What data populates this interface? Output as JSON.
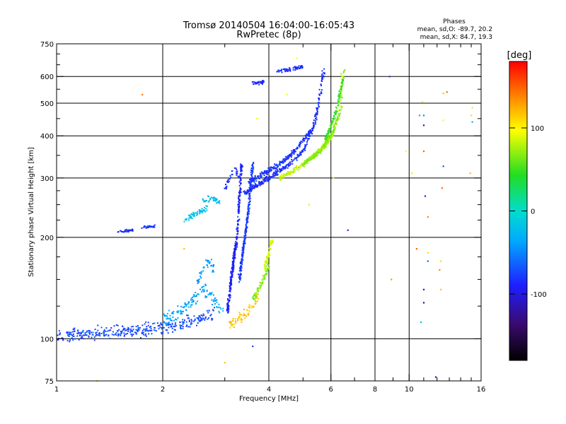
{
  "chart_data": {
    "type": "scatter",
    "title": "Tromsø 20140504 16:04:00-16:05:43",
    "subtitle": "RwPretec (8p)",
    "annotation": {
      "heading": "Phases",
      "line_o": "mean, sd,O: -89.7, 20.2",
      "line_x": "mean, sd,X:  84.7, 19.3"
    },
    "xlabel": "Frequency [MHz]",
    "ylabel": "Stationary phase Virtual Height [km]",
    "x_scale": "log",
    "y_scale": "log",
    "xlim": [
      1,
      16
    ],
    "ylim": [
      75,
      750
    ],
    "x_ticks": [
      1,
      2,
      4,
      6,
      8,
      10,
      16
    ],
    "x_tick_labels": [
      "1",
      "2",
      "4",
      "6",
      "8",
      "10",
      "16"
    ],
    "x_minor_ticks": [
      3,
      5,
      7,
      9,
      11,
      12,
      13,
      14,
      15
    ],
    "y_ticks": [
      75,
      100,
      200,
      300,
      400,
      500,
      600,
      750
    ],
    "y_tick_labels": [
      "75",
      "100",
      "200",
      "300",
      "400",
      "500",
      "600",
      "750"
    ],
    "y_minor_ticks": [
      125,
      150,
      175,
      225,
      250,
      275,
      350,
      450,
      550,
      650,
      700
    ],
    "grid_x": [
      2,
      4,
      6,
      8,
      10
    ],
    "grid_y": [
      100,
      200,
      300,
      400,
      500,
      600
    ],
    "colorbar": {
      "label": "[deg]",
      "range": [
        -180,
        180
      ],
      "ticks": [
        100,
        0,
        -100
      ],
      "tick_labels": [
        "100",
        "0",
        "-100"
      ]
    },
    "traces": [
      {
        "f": [
          1.0,
          1.3,
          1.6,
          1.9,
          2.2,
          2.5,
          2.8
        ],
        "h": [
          102,
          104,
          105,
          107,
          110,
          114,
          118
        ],
        "phase": -85,
        "spread": 0.06
      },
      {
        "f": [
          2.0,
          2.2,
          2.4,
          2.6,
          2.8,
          2.95
        ],
        "h": [
          112,
          118,
          128,
          140,
          130,
          120
        ],
        "phase": -50,
        "spread": 0.07
      },
      {
        "f": [
          2.5,
          2.6,
          2.7,
          2.8
        ],
        "h": [
          145,
          162,
          170,
          160
        ],
        "phase": -55,
        "spread": 0.05
      },
      {
        "f": [
          2.6,
          2.75,
          2.9
        ],
        "h": [
          255,
          262,
          255
        ],
        "phase": -30,
        "spread": 0.03
      },
      {
        "f": [
          2.3,
          2.5,
          2.7
        ],
        "h": [
          225,
          235,
          245
        ],
        "phase": -30,
        "spread": 0.03
      },
      {
        "f": [
          3.1,
          3.3,
          3.5,
          3.75
        ],
        "h": [
          110,
          115,
          120,
          135
        ],
        "phase": 120,
        "spread": 0.05
      },
      {
        "f": [
          3.6,
          3.8,
          4.0
        ],
        "h": [
          130,
          145,
          165
        ],
        "phase": 70,
        "spread": 0.04
      },
      {
        "f": [
          3.9,
          4.0,
          4.1
        ],
        "h": [
          165,
          180,
          200
        ],
        "phase": 90,
        "spread": 0.04
      },
      {
        "f": [
          3.05,
          3.15,
          3.25,
          3.3,
          3.35
        ],
        "h": [
          120,
          160,
          200,
          260,
          330
        ],
        "phase": -100,
        "spread": 0.03
      },
      {
        "f": [
          3.3,
          3.4,
          3.5,
          3.6
        ],
        "h": [
          150,
          190,
          240,
          330
        ],
        "phase": -90,
        "spread": 0.03
      },
      {
        "f": [
          3.0,
          3.1,
          3.2,
          3.3
        ],
        "h": [
          280,
          300,
          320,
          300
        ],
        "phase": -95,
        "spread": 0.03
      },
      {
        "f": [
          3.4,
          3.7,
          4.0,
          4.5,
          5.0,
          5.4,
          5.7
        ],
        "h": [
          270,
          285,
          300,
          325,
          360,
          430,
          620
        ],
        "phase": -95,
        "spread": 0.025
      },
      {
        "f": [
          3.5,
          3.9,
          4.3,
          4.8,
          5.3,
          5.6,
          5.75
        ],
        "h": [
          290,
          310,
          330,
          365,
          420,
          520,
          650
        ],
        "phase": -92,
        "spread": 0.025
      },
      {
        "f": [
          4.3,
          4.8,
          5.4,
          6.0,
          6.3,
          6.45
        ],
        "h": [
          300,
          320,
          350,
          395,
          460,
          620
        ],
        "phase": 85,
        "spread": 0.025
      },
      {
        "f": [
          5.0,
          5.6,
          6.1,
          6.4,
          6.55
        ],
        "h": [
          330,
          360,
          410,
          480,
          640
        ],
        "phase": 70,
        "spread": 0.025
      },
      {
        "f": [
          5.8,
          6.2,
          6.5
        ],
        "h": [
          390,
          470,
          590
        ],
        "phase": 50,
        "spread": 0.02
      },
      {
        "f": [
          4.2,
          4.6,
          5.0
        ],
        "h": [
          622,
          630,
          642
        ],
        "phase": -95,
        "spread": 0.02
      },
      {
        "f": [
          3.6,
          3.75,
          3.9
        ],
        "h": [
          572,
          575,
          580
        ],
        "phase": -95,
        "spread": 0.02
      },
      {
        "f": [
          1.5,
          1.65
        ],
        "h": [
          208,
          210
        ],
        "phase": -95,
        "spread": 0.015
      },
      {
        "f": [
          1.75,
          1.9
        ],
        "h": [
          214,
          216
        ],
        "phase": -90,
        "spread": 0.015
      }
    ],
    "sparse_points": [
      {
        "f": 1.75,
        "h": 530,
        "phase": 145
      },
      {
        "f": 1.3,
        "h": 75,
        "phase": 90
      },
      {
        "f": 2.3,
        "h": 185,
        "phase": 120
      },
      {
        "f": 3.0,
        "h": 85,
        "phase": 120
      },
      {
        "f": 3.6,
        "h": 95,
        "phase": -90
      },
      {
        "f": 3.7,
        "h": 450,
        "phase": 100
      },
      {
        "f": 4.5,
        "h": 530,
        "phase": 100
      },
      {
        "f": 4.8,
        "h": 680,
        "phase": 100
      },
      {
        "f": 6.1,
        "h": 300,
        "phase": 90
      },
      {
        "f": 6.7,
        "h": 210,
        "phase": -95
      },
      {
        "f": 5.2,
        "h": 250,
        "phase": 90
      },
      {
        "f": 8.8,
        "h": 600,
        "phase": -90
      },
      {
        "f": 8.9,
        "h": 150,
        "phase": 60
      },
      {
        "f": 9.8,
        "h": 360,
        "phase": 100
      },
      {
        "f": 10.2,
        "h": 310,
        "phase": 90
      },
      {
        "f": 10.7,
        "h": 460,
        "phase": -40
      },
      {
        "f": 10.9,
        "h": 505,
        "phase": 100
      },
      {
        "f": 11.0,
        "h": 460,
        "phase": -60
      },
      {
        "f": 11.0,
        "h": 430,
        "phase": -110
      },
      {
        "f": 11.0,
        "h": 360,
        "phase": 150
      },
      {
        "f": 11.1,
        "h": 265,
        "phase": -100
      },
      {
        "f": 11.3,
        "h": 230,
        "phase": 140
      },
      {
        "f": 11.3,
        "h": 180,
        "phase": 110
      },
      {
        "f": 11.3,
        "h": 170,
        "phase": -70
      },
      {
        "f": 11.0,
        "h": 140,
        "phase": -120
      },
      {
        "f": 11.0,
        "h": 128,
        "phase": -130
      },
      {
        "f": 10.8,
        "h": 112,
        "phase": -30
      },
      {
        "f": 10.5,
        "h": 185,
        "phase": 150
      },
      {
        "f": 12.5,
        "h": 535,
        "phase": 120
      },
      {
        "f": 12.8,
        "h": 540,
        "phase": 150
      },
      {
        "f": 12.5,
        "h": 445,
        "phase": 100
      },
      {
        "f": 12.5,
        "h": 325,
        "phase": -80
      },
      {
        "f": 12.4,
        "h": 280,
        "phase": 150
      },
      {
        "f": 12.3,
        "h": 170,
        "phase": 110
      },
      {
        "f": 12.3,
        "h": 140,
        "phase": 120
      },
      {
        "f": 12.2,
        "h": 160,
        "phase": 140
      },
      {
        "f": 11.9,
        "h": 77,
        "phase": -120
      },
      {
        "f": 15.1,
        "h": 485,
        "phase": 90
      },
      {
        "f": 15.0,
        "h": 460,
        "phase": 110
      },
      {
        "f": 15.1,
        "h": 440,
        "phase": -40
      },
      {
        "f": 14.9,
        "h": 310,
        "phase": 120
      }
    ]
  }
}
